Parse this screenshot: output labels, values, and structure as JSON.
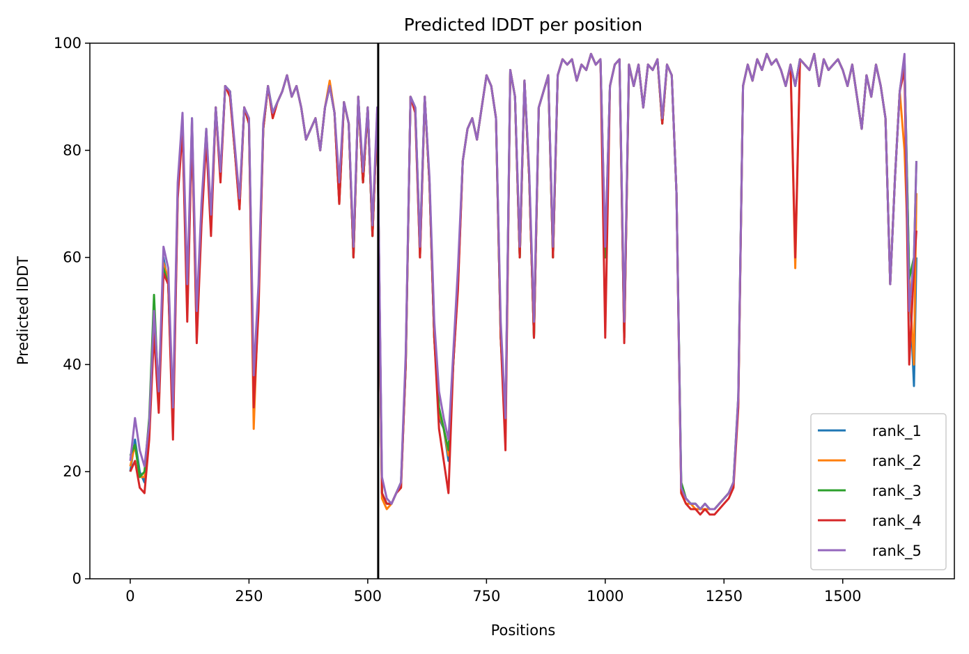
{
  "chart_data": {
    "type": "line",
    "title": "Predicted lDDT per position",
    "xlabel": "Positions",
    "ylabel": "Predicted lDDT",
    "xlim": [
      -85,
      1735
    ],
    "ylim": [
      0,
      100
    ],
    "xticks": [
      0,
      250,
      500,
      750,
      1000,
      1250,
      1500
    ],
    "yticks": [
      0,
      20,
      40,
      60,
      80,
      100
    ],
    "xtick_labels": [
      "0",
      "250",
      "500",
      "750",
      "1000",
      "1250",
      "1500"
    ],
    "ytick_labels": [
      "0",
      "20",
      "40",
      "60",
      "80",
      "100"
    ],
    "grid": false,
    "legend_position": "lower-right",
    "vline": {
      "x": 522,
      "color": "#000000"
    },
    "x": [
      0,
      10,
      20,
      30,
      40,
      50,
      60,
      70,
      80,
      90,
      100,
      110,
      120,
      130,
      140,
      150,
      160,
      170,
      180,
      190,
      200,
      210,
      220,
      230,
      240,
      250,
      260,
      270,
      280,
      290,
      300,
      310,
      320,
      330,
      340,
      350,
      360,
      370,
      380,
      390,
      400,
      410,
      420,
      430,
      440,
      450,
      460,
      470,
      480,
      490,
      500,
      510,
      520,
      530,
      540,
      550,
      560,
      570,
      580,
      590,
      600,
      610,
      620,
      630,
      640,
      650,
      660,
      670,
      680,
      690,
      700,
      710,
      720,
      730,
      740,
      750,
      760,
      770,
      780,
      790,
      800,
      810,
      820,
      830,
      840,
      850,
      860,
      870,
      880,
      890,
      900,
      910,
      920,
      930,
      940,
      950,
      960,
      970,
      980,
      990,
      1000,
      1010,
      1020,
      1030,
      1040,
      1050,
      1060,
      1070,
      1080,
      1090,
      1100,
      1110,
      1120,
      1130,
      1140,
      1150,
      1160,
      1170,
      1180,
      1190,
      1200,
      1210,
      1220,
      1230,
      1240,
      1250,
      1260,
      1270,
      1280,
      1290,
      1300,
      1310,
      1320,
      1330,
      1340,
      1350,
      1360,
      1370,
      1380,
      1390,
      1400,
      1410,
      1420,
      1430,
      1440,
      1450,
      1460,
      1470,
      1480,
      1490,
      1500,
      1510,
      1520,
      1530,
      1540,
      1550,
      1560,
      1570,
      1580,
      1590,
      1600,
      1610,
      1620,
      1630,
      1640,
      1650,
      1655
    ],
    "series": [
      {
        "name": "rank_1",
        "color": "#1f77b4",
        "values": [
          20,
          26,
          20,
          18,
          28,
          48,
          32,
          60,
          55,
          28,
          72,
          85,
          50,
          86,
          45,
          68,
          82,
          66,
          88,
          75,
          92,
          91,
          80,
          70,
          88,
          85,
          35,
          52,
          84,
          92,
          87,
          89,
          91,
          94,
          90,
          92,
          88,
          82,
          84,
          86,
          80,
          88,
          92,
          87,
          70,
          89,
          85,
          60,
          90,
          74,
          88,
          64,
          87,
          16,
          14,
          14,
          16,
          17,
          40,
          90,
          88,
          60,
          90,
          74,
          45,
          30,
          28,
          22,
          40,
          55,
          78,
          84,
          86,
          82,
          88,
          94,
          92,
          86,
          45,
          28,
          95,
          90,
          60,
          93,
          75,
          45,
          88,
          91,
          94,
          60,
          94,
          97,
          96,
          97,
          93,
          96,
          95,
          98,
          96,
          97,
          60,
          92,
          96,
          97,
          45,
          96,
          92,
          96,
          88,
          96,
          95,
          97,
          85,
          96,
          94,
          72,
          17,
          15,
          14,
          14,
          13,
          14,
          13,
          13,
          14,
          15,
          16,
          18,
          33,
          92,
          96,
          93,
          97,
          95,
          98,
          96,
          97,
          95,
          92,
          96,
          92,
          97,
          96,
          95,
          98,
          92,
          97,
          95,
          96,
          97,
          95,
          92,
          96,
          90,
          84,
          94,
          90,
          96,
          92,
          86,
          55,
          75,
          91,
          97,
          56,
          36,
          60
        ]
      },
      {
        "name": "rank_2",
        "color": "#ff7f0e",
        "values": [
          21,
          25,
          19,
          19,
          27,
          47,
          33,
          59,
          56,
          29,
          73,
          86,
          50,
          85,
          46,
          67,
          83,
          65,
          88,
          75,
          92,
          90,
          80,
          69,
          88,
          86,
          28,
          53,
          84,
          92,
          86,
          89,
          91,
          94,
          90,
          92,
          88,
          82,
          84,
          86,
          80,
          88,
          93,
          87,
          70,
          89,
          85,
          60,
          90,
          74,
          88,
          64,
          87,
          15,
          13,
          14,
          16,
          17,
          40,
          90,
          87,
          60,
          90,
          74,
          45,
          31,
          28,
          23,
          40,
          55,
          78,
          84,
          86,
          82,
          88,
          94,
          92,
          86,
          45,
          28,
          95,
          90,
          60,
          93,
          75,
          45,
          88,
          91,
          94,
          60,
          94,
          97,
          96,
          97,
          93,
          96,
          95,
          98,
          96,
          97,
          60,
          92,
          96,
          97,
          45,
          96,
          92,
          96,
          88,
          96,
          95,
          97,
          85,
          96,
          94,
          72,
          16,
          14,
          14,
          13,
          13,
          13,
          13,
          13,
          14,
          15,
          16,
          18,
          33,
          92,
          96,
          93,
          97,
          95,
          98,
          96,
          97,
          95,
          92,
          96,
          58,
          97,
          96,
          95,
          98,
          92,
          97,
          95,
          96,
          97,
          95,
          92,
          96,
          90,
          84,
          94,
          90,
          96,
          92,
          86,
          55,
          75,
          91,
          80,
          56,
          40,
          72
        ]
      },
      {
        "name": "rank_3",
        "color": "#2ca02c",
        "values": [
          23,
          25,
          19,
          20,
          30,
          53,
          33,
          58,
          55,
          30,
          72,
          85,
          52,
          84,
          47,
          68,
          84,
          66,
          88,
          75,
          92,
          91,
          80,
          70,
          88,
          85,
          36,
          53,
          84,
          92,
          87,
          89,
          91,
          94,
          90,
          92,
          88,
          82,
          84,
          86,
          80,
          88,
          92,
          87,
          72,
          89,
          85,
          60,
          90,
          74,
          88,
          64,
          87,
          16,
          14,
          14,
          16,
          18,
          40,
          90,
          88,
          62,
          90,
          74,
          45,
          32,
          28,
          24,
          40,
          56,
          78,
          84,
          86,
          82,
          88,
          94,
          92,
          86,
          45,
          28,
          95,
          90,
          60,
          93,
          75,
          45,
          88,
          91,
          94,
          60,
          94,
          97,
          96,
          97,
          93,
          96,
          95,
          98,
          96,
          97,
          60,
          92,
          96,
          97,
          45,
          96,
          92,
          96,
          88,
          96,
          95,
          97,
          85,
          96,
          94,
          72,
          18,
          15,
          14,
          14,
          13,
          14,
          13,
          13,
          14,
          15,
          16,
          18,
          34,
          92,
          96,
          93,
          97,
          95,
          98,
          96,
          97,
          95,
          92,
          96,
          92,
          97,
          96,
          95,
          98,
          92,
          97,
          95,
          96,
          97,
          95,
          92,
          96,
          90,
          84,
          94,
          90,
          96,
          92,
          86,
          55,
          75,
          91,
          97,
          56,
          60,
          78
        ]
      },
      {
        "name": "rank_4",
        "color": "#d62728",
        "values": [
          20,
          22,
          17,
          16,
          26,
          46,
          31,
          57,
          55,
          26,
          71,
          84,
          48,
          84,
          44,
          66,
          82,
          64,
          88,
          74,
          92,
          90,
          80,
          69,
          88,
          85,
          32,
          50,
          84,
          92,
          86,
          89,
          91,
          94,
          90,
          92,
          88,
          82,
          84,
          86,
          80,
          88,
          92,
          87,
          70,
          89,
          85,
          60,
          90,
          74,
          88,
          64,
          87,
          16,
          14,
          14,
          16,
          17,
          40,
          90,
          87,
          60,
          90,
          74,
          45,
          28,
          22,
          16,
          40,
          54,
          78,
          84,
          86,
          82,
          88,
          94,
          92,
          86,
          45,
          24,
          95,
          90,
          60,
          93,
          75,
          45,
          88,
          91,
          94,
          60,
          94,
          97,
          96,
          97,
          93,
          96,
          95,
          98,
          96,
          97,
          45,
          92,
          96,
          97,
          44,
          96,
          92,
          96,
          88,
          96,
          95,
          97,
          85,
          96,
          94,
          72,
          16,
          14,
          13,
          13,
          12,
          13,
          12,
          12,
          13,
          14,
          15,
          17,
          32,
          92,
          96,
          93,
          97,
          95,
          98,
          96,
          97,
          95,
          92,
          96,
          60,
          97,
          96,
          95,
          98,
          92,
          97,
          95,
          96,
          97,
          95,
          92,
          96,
          90,
          84,
          94,
          90,
          96,
          92,
          86,
          55,
          75,
          91,
          95,
          40,
          58,
          65
        ]
      },
      {
        "name": "rank_5",
        "color": "#9467bd",
        "values": [
          22,
          30,
          24,
          21,
          29,
          50,
          35,
          62,
          58,
          32,
          74,
          87,
          55,
          86,
          50,
          70,
          84,
          68,
          88,
          76,
          92,
          91,
          81,
          71,
          88,
          86,
          38,
          55,
          85,
          92,
          87,
          89,
          91,
          94,
          90,
          92,
          88,
          82,
          84,
          86,
          80,
          88,
          92,
          87,
          74,
          89,
          85,
          62,
          90,
          76,
          88,
          66,
          88,
          19,
          15,
          14,
          16,
          18,
          42,
          90,
          88,
          62,
          90,
          75,
          48,
          35,
          30,
          26,
          42,
          58,
          78,
          84,
          86,
          82,
          88,
          94,
          92,
          86,
          48,
          30,
          95,
          90,
          62,
          93,
          76,
          48,
          88,
          91,
          94,
          62,
          94,
          97,
          96,
          97,
          93,
          96,
          95,
          98,
          96,
          97,
          62,
          92,
          96,
          97,
          48,
          96,
          92,
          96,
          88,
          96,
          95,
          97,
          86,
          96,
          94,
          72,
          17,
          15,
          14,
          14,
          13,
          14,
          13,
          13,
          14,
          15,
          16,
          18,
          34,
          92,
          96,
          93,
          97,
          95,
          98,
          96,
          97,
          95,
          92,
          96,
          92,
          97,
          96,
          95,
          98,
          92,
          97,
          95,
          96,
          97,
          95,
          92,
          96,
          90,
          84,
          94,
          90,
          96,
          92,
          86,
          55,
          75,
          91,
          98,
          50,
          60,
          78
        ]
      }
    ]
  }
}
